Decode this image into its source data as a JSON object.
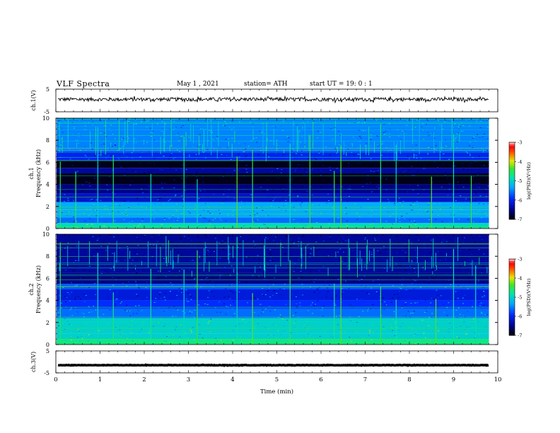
{
  "header": {
    "title": "VLF  Spectra",
    "date": "May 1  , 2021",
    "station": "station= ATH",
    "start_ut": "start  UT  =    19: 0   : 1"
  },
  "chart_data": [
    {
      "type": "line",
      "name": "ch1 waveform",
      "ylabel": "ch.1(V)",
      "ylim": [
        -5,
        5
      ],
      "yticks": [
        "5",
        "-5"
      ],
      "xlim": [
        0,
        10
      ],
      "data_end_min": 9.8,
      "level_v": 0.5,
      "fluctuation_v": 0.8
    },
    {
      "type": "heatmap",
      "name": "ch1 spectrogram",
      "ylabel": "ch.1\nFrequency  (kHz)",
      "ylim": [
        0,
        10
      ],
      "yticks": [
        "0",
        "2",
        "4",
        "6",
        "8",
        "10"
      ],
      "xlim": [
        0,
        10
      ],
      "data_end_min": 9.8,
      "colorbar": {
        "label": "log(PSD)(V²/Hz)",
        "range": [
          -7,
          -3
        ],
        "ticks": [
          "-3",
          "-4",
          "-5",
          "-6",
          "-7"
        ]
      },
      "bands_khz": [
        {
          "from": 0.0,
          "to": 0.5,
          "level": -4.9
        },
        {
          "from": 0.5,
          "to": 1.0,
          "level": -5.6
        },
        {
          "from": 1.0,
          "to": 2.4,
          "level": -5.3
        },
        {
          "from": 2.4,
          "to": 3.2,
          "level": -6.2
        },
        {
          "from": 3.2,
          "to": 4.0,
          "level": -6.5
        },
        {
          "from": 4.0,
          "to": 5.0,
          "level": -6.9
        },
        {
          "from": 5.0,
          "to": 5.5,
          "level": -6.4
        },
        {
          "from": 5.5,
          "to": 6.2,
          "level": -6.9
        },
        {
          "from": 6.2,
          "to": 7.0,
          "level": -6.0
        },
        {
          "from": 7.0,
          "to": 10.0,
          "level": -5.5
        }
      ],
      "impulses_min": [
        0.1,
        0.45,
        0.95,
        1.3,
        2.15,
        2.9,
        3.2,
        4.1,
        4.45,
        5.3,
        5.75,
        6.3,
        6.45,
        7.35,
        7.7,
        8.5,
        9.0,
        9.4
      ]
    },
    {
      "type": "heatmap",
      "name": "ch2 spectrogram",
      "ylabel": "ch.2\nFrequency  (kHz)",
      "ylim": [
        0,
        10
      ],
      "yticks": [
        "0",
        "2",
        "4",
        "6",
        "8",
        "10"
      ],
      "xlim": [
        0,
        10
      ],
      "data_end_min": 9.8,
      "colorbar": {
        "label": "log(PSD)(V²/Hz)",
        "range": [
          -7,
          -3
        ],
        "ticks": [
          "-3",
          "-4",
          "-5",
          "-6",
          "-7"
        ]
      },
      "bands_khz": [
        {
          "from": 0.0,
          "to": 0.5,
          "level": -4.7
        },
        {
          "from": 0.5,
          "to": 1.0,
          "level": -5.0
        },
        {
          "from": 1.0,
          "to": 2.4,
          "level": -5.0
        },
        {
          "from": 2.4,
          "to": 3.2,
          "level": -5.6
        },
        {
          "from": 3.2,
          "to": 4.0,
          "level": -5.9
        },
        {
          "from": 4.0,
          "to": 5.0,
          "level": -6.1
        },
        {
          "from": 5.0,
          "to": 5.5,
          "level": -5.7
        },
        {
          "from": 5.5,
          "to": 6.5,
          "level": -6.5
        },
        {
          "from": 6.5,
          "to": 10.0,
          "level": -6.4
        }
      ],
      "impulses_min": [
        0.1,
        0.95,
        1.3,
        2.15,
        2.9,
        3.2,
        4.1,
        4.45,
        5.3,
        6.3,
        6.45,
        7.35,
        7.7,
        8.6,
        9.0,
        9.5
      ]
    },
    {
      "type": "line",
      "name": "ch3 waveform",
      "ylabel": "ch.3(V)",
      "ylim": [
        -5,
        5
      ],
      "yticks": [
        "5",
        "-5"
      ],
      "xlim": [
        0,
        10
      ],
      "data_end_min": 9.8,
      "level_v": -1.5,
      "fluctuation_v": 0.1,
      "xlabel": "Time  (min)",
      "xticks": [
        "0",
        "1",
        "2",
        "3",
        "4",
        "5",
        "6",
        "7",
        "8",
        "9",
        "10"
      ]
    }
  ]
}
